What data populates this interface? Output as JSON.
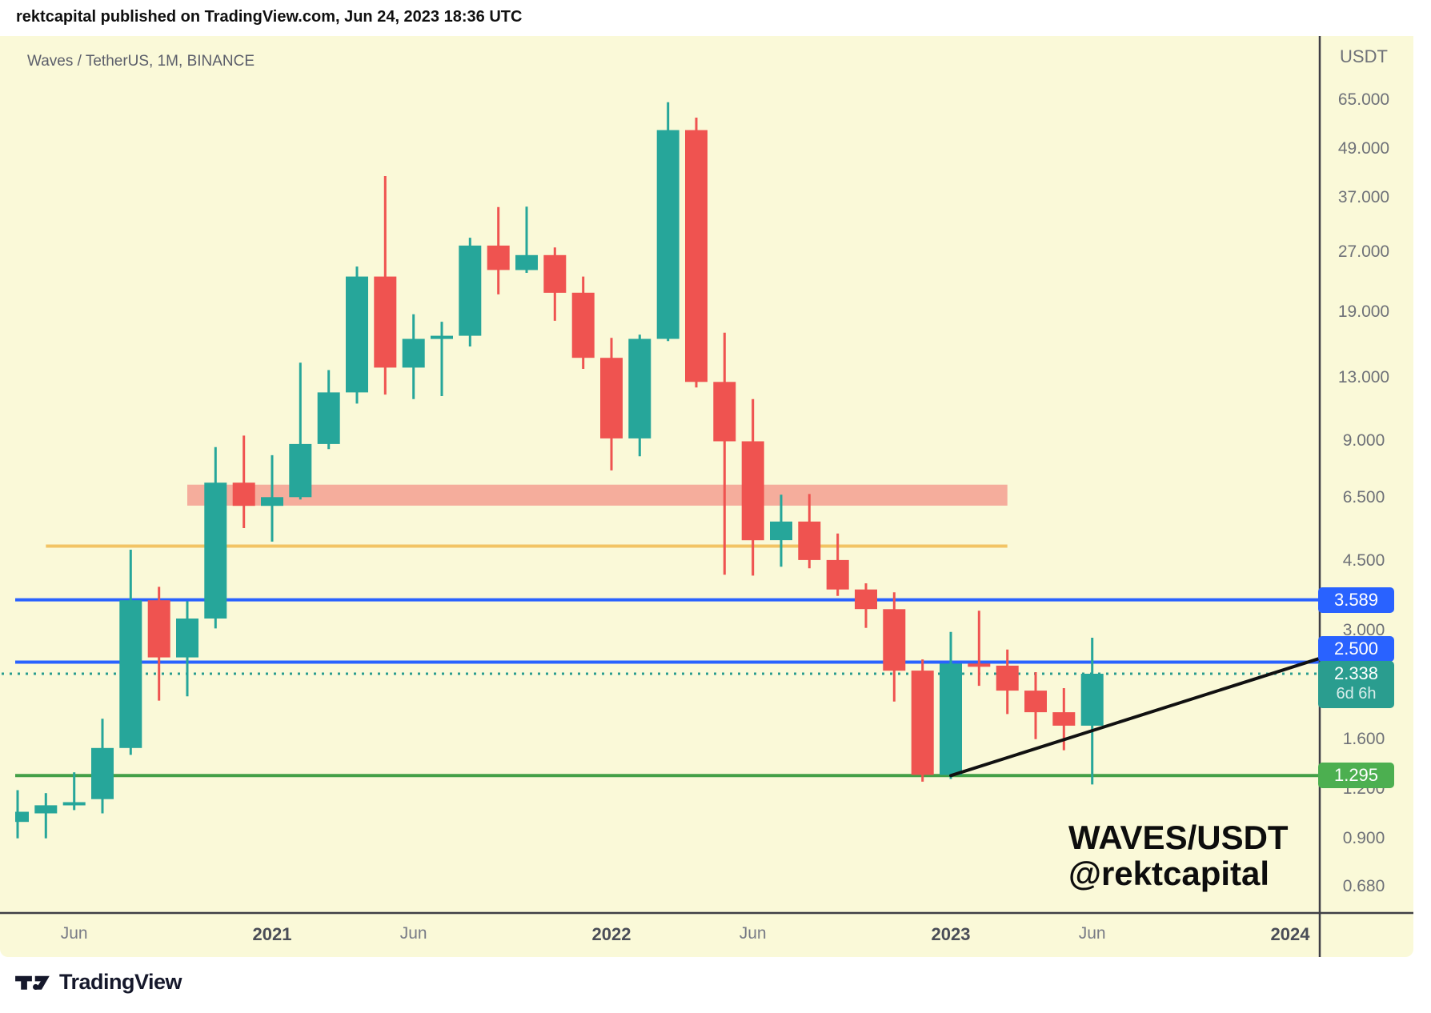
{
  "header": {
    "published_line": "rektcapital published on TradingView.com, Jun 24, 2023 18:36 UTC"
  },
  "chart_title": "Waves / TetherUS, 1M, BINANCE",
  "watermark": {
    "line1": "WAVES/USDT",
    "line2": "@rektcapital"
  },
  "footer": {
    "brand": "TradingView"
  },
  "colors": {
    "background_panel": "#FAF9D8",
    "page_white": "#FFFFFF",
    "candle_up": "#26A69A",
    "candle_down": "#EF5350",
    "blue_level": "#2962FF",
    "green_level": "#43A047",
    "green_chip": "#4CAF50",
    "teal_chip": "#2A9D8F",
    "orange_level": "#F2C464",
    "pink_band": "#F5AD9C",
    "dotted_price": "#2A9D8F",
    "axis_line": "#3f3f46",
    "trendline": "#111111",
    "tick_text": "#6e7178",
    "brand_text": "#15182b"
  },
  "chart_data": {
    "type": "candlestick",
    "symbol": "WAVES/USDT",
    "pair_title": "Waves / TetherUS",
    "timeframe": "1M",
    "exchange": "BINANCE",
    "scale": "logarithmic",
    "grid": "off",
    "price_axis": {
      "currency": "USDT",
      "ticks": [
        {
          "label": "65.000",
          "value": 65
        },
        {
          "label": "49.000",
          "value": 49
        },
        {
          "label": "37.000",
          "value": 37
        },
        {
          "label": "27.000",
          "value": 27
        },
        {
          "label": "19.000",
          "value": 19
        },
        {
          "label": "13.000",
          "value": 13
        },
        {
          "label": "9.000",
          "value": 9
        },
        {
          "label": "6.500",
          "value": 6.5
        },
        {
          "label": "4.500",
          "value": 4.5
        },
        {
          "label": "3.000",
          "value": 3
        },
        {
          "label": "1.600",
          "value": 1.6
        },
        {
          "label": "1.200",
          "value": 1.2
        },
        {
          "label": "0.900",
          "value": 0.9
        },
        {
          "label": "0.680",
          "value": 0.68
        }
      ]
    },
    "time_axis": {
      "ticks": [
        {
          "label": "Jun",
          "month": "2020-06",
          "bold": false
        },
        {
          "label": "2021",
          "month": "2021-01",
          "bold": true
        },
        {
          "label": "Jun",
          "month": "2021-06",
          "bold": false
        },
        {
          "label": "2022",
          "month": "2022-01",
          "bold": true
        },
        {
          "label": "Jun",
          "month": "2022-06",
          "bold": false
        },
        {
          "label": "2023",
          "month": "2023-01",
          "bold": true
        },
        {
          "label": "Jun",
          "month": "2023-06",
          "bold": false
        },
        {
          "label": "2024",
          "month": "2024-01",
          "bold": true
        }
      ]
    },
    "candles": [
      {
        "t": "2020-04",
        "o": 0.99,
        "h": 1.19,
        "l": 0.9,
        "c": 1.05
      },
      {
        "t": "2020-05",
        "o": 1.04,
        "h": 1.17,
        "l": 0.9,
        "c": 1.09
      },
      {
        "t": "2020-06",
        "o": 1.09,
        "h": 1.32,
        "l": 1.06,
        "c": 1.11
      },
      {
        "t": "2020-07",
        "o": 1.13,
        "h": 1.8,
        "l": 1.04,
        "c": 1.52
      },
      {
        "t": "2020-08",
        "o": 1.52,
        "h": 4.8,
        "l": 1.46,
        "c": 3.58
      },
      {
        "t": "2020-09",
        "o": 3.58,
        "h": 3.87,
        "l": 2.0,
        "c": 2.57
      },
      {
        "t": "2020-10",
        "o": 2.57,
        "h": 3.56,
        "l": 2.05,
        "c": 3.22
      },
      {
        "t": "2020-11",
        "o": 3.22,
        "h": 8.7,
        "l": 3.04,
        "c": 7.08
      },
      {
        "t": "2020-12",
        "o": 7.08,
        "h": 9.3,
        "l": 5.44,
        "c": 6.19
      },
      {
        "t": "2021-01",
        "o": 6.19,
        "h": 8.3,
        "l": 5.03,
        "c": 6.51
      },
      {
        "t": "2021-02",
        "o": 6.51,
        "h": 14.2,
        "l": 6.42,
        "c": 8.86
      },
      {
        "t": "2021-03",
        "o": 8.86,
        "h": 13.6,
        "l": 8.6,
        "c": 11.95
      },
      {
        "t": "2021-04",
        "o": 11.95,
        "h": 24.8,
        "l": 11.2,
        "c": 23.4
      },
      {
        "t": "2021-05",
        "o": 23.4,
        "h": 41.9,
        "l": 11.8,
        "c": 13.8
      },
      {
        "t": "2021-06",
        "o": 13.8,
        "h": 18.8,
        "l": 11.5,
        "c": 16.3
      },
      {
        "t": "2021-07",
        "o": 16.3,
        "h": 18.0,
        "l": 11.7,
        "c": 16.6
      },
      {
        "t": "2021-08",
        "o": 16.6,
        "h": 29.3,
        "l": 15.6,
        "c": 28.0
      },
      {
        "t": "2021-09",
        "o": 28.0,
        "h": 35.0,
        "l": 21.1,
        "c": 24.3
      },
      {
        "t": "2021-10",
        "o": 24.3,
        "h": 35.1,
        "l": 23.9,
        "c": 26.5
      },
      {
        "t": "2021-11",
        "o": 26.5,
        "h": 27.7,
        "l": 18.1,
        "c": 21.3
      },
      {
        "t": "2021-12",
        "o": 21.3,
        "h": 23.4,
        "l": 13.7,
        "c": 14.6
      },
      {
        "t": "2022-01",
        "o": 14.6,
        "h": 16.4,
        "l": 7.6,
        "c": 9.15
      },
      {
        "t": "2022-02",
        "o": 9.15,
        "h": 16.7,
        "l": 8.25,
        "c": 16.3
      },
      {
        "t": "2022-03",
        "o": 16.3,
        "h": 64.3,
        "l": 16.1,
        "c": 54.7
      },
      {
        "t": "2022-04",
        "o": 54.7,
        "h": 58.8,
        "l": 12.3,
        "c": 12.7
      },
      {
        "t": "2022-05",
        "o": 12.7,
        "h": 16.9,
        "l": 4.15,
        "c": 9.0
      },
      {
        "t": "2022-06",
        "o": 9.0,
        "h": 11.5,
        "l": 4.13,
        "c": 5.07
      },
      {
        "t": "2022-07",
        "o": 5.07,
        "h": 6.6,
        "l": 4.35,
        "c": 5.65
      },
      {
        "t": "2022-08",
        "o": 5.65,
        "h": 6.63,
        "l": 4.31,
        "c": 4.52
      },
      {
        "t": "2022-09",
        "o": 4.52,
        "h": 5.27,
        "l": 3.67,
        "c": 3.81
      },
      {
        "t": "2022-10",
        "o": 3.81,
        "h": 3.95,
        "l": 3.05,
        "c": 3.4
      },
      {
        "t": "2022-11",
        "o": 3.4,
        "h": 3.75,
        "l": 1.99,
        "c": 2.38
      },
      {
        "t": "2022-12",
        "o": 2.38,
        "h": 2.54,
        "l": 1.25,
        "c": 1.3
      },
      {
        "t": "2023-01",
        "o": 1.3,
        "h": 2.98,
        "l": 1.27,
        "c": 2.48
      },
      {
        "t": "2023-02",
        "o": 2.48,
        "h": 3.37,
        "l": 2.18,
        "c": 2.45
      },
      {
        "t": "2023-03",
        "o": 2.45,
        "h": 2.69,
        "l": 1.85,
        "c": 2.12
      },
      {
        "t": "2023-04",
        "o": 2.12,
        "h": 2.36,
        "l": 1.6,
        "c": 1.87
      },
      {
        "t": "2023-05",
        "o": 1.87,
        "h": 2.15,
        "l": 1.5,
        "c": 1.73
      },
      {
        "t": "2023-06",
        "o": 1.73,
        "h": 2.88,
        "l": 1.23,
        "c": 2.338
      }
    ],
    "levels": [
      {
        "kind": "band",
        "name": "resistance-zone",
        "price_top": 7.0,
        "price_bottom": 6.2,
        "from": "2020-10",
        "to": "2023-03",
        "color": "pink_band"
      },
      {
        "kind": "line",
        "name": "orange-level",
        "price": 4.9,
        "from": "2020-05",
        "to": "2023-03",
        "color": "orange_level",
        "width": 4
      },
      {
        "kind": "line",
        "name": "blue-level-high",
        "price": 3.589,
        "span": "full",
        "color": "blue_level",
        "width": 4
      },
      {
        "kind": "line",
        "name": "blue-level-low",
        "price": 2.5,
        "span": "full",
        "color": "blue_level",
        "width": 4
      },
      {
        "kind": "dotted",
        "name": "current-price-line",
        "price": 2.338,
        "span": "full",
        "color": "dotted_price",
        "width": 3
      },
      {
        "kind": "line",
        "name": "green-level",
        "price": 1.295,
        "span": "full",
        "color": "green_level",
        "width": 4
      }
    ],
    "trendline": {
      "from": {
        "month": "2023-01",
        "price": 1.295
      },
      "to": {
        "month": "2024-02",
        "price": 2.55
      },
      "color": "trendline",
      "width": 4
    },
    "price_labels": [
      {
        "text": "3.589",
        "price": 3.589,
        "style": "blue"
      },
      {
        "text": "2.500",
        "price": 2.5,
        "style": "blue",
        "align": "bottom"
      },
      {
        "text": "2.338",
        "price": 2.338,
        "style": "teal",
        "sub": "6d 6h"
      },
      {
        "text": "1.295",
        "price": 1.295,
        "style": "green"
      }
    ],
    "current_price": {
      "value": "2.338",
      "countdown": "6d 6h"
    }
  }
}
